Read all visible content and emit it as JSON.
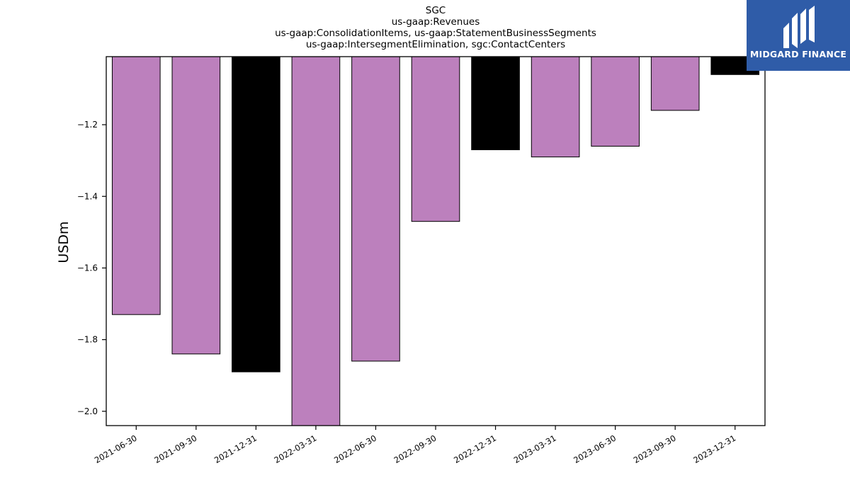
{
  "chart_data": {
    "type": "bar",
    "title_lines": [
      "SGC",
      "us-gaap:Revenues",
      "us-gaap:ConsolidationItems, us-gaap:StatementBusinessSegments",
      "us-gaap:IntersegmentElimination, sgc:ContactCenters"
    ],
    "ylabel": "USDm",
    "xlabel": "",
    "categories": [
      "2021-06-30",
      "2021-09-30",
      "2021-12-31",
      "2022-03-31",
      "2022-06-30",
      "2022-09-30",
      "2022-12-31",
      "2023-03-31",
      "2023-06-30",
      "2023-09-30",
      "2023-12-31"
    ],
    "values": [
      -1.73,
      -1.84,
      -1.89,
      -2.04,
      -1.86,
      -1.47,
      -1.27,
      -1.29,
      -1.26,
      -1.16,
      -1.06
    ],
    "bar_colors": [
      "#bc80bd",
      "#bc80bd",
      "#000000",
      "#bc80bd",
      "#bc80bd",
      "#bc80bd",
      "#000000",
      "#bc80bd",
      "#bc80bd",
      "#bc80bd",
      "#000000"
    ],
    "ylim": [
      -2.04,
      -1.01
    ],
    "yticks": [
      -1.2,
      -1.4,
      -1.6,
      -1.8,
      -2.0
    ],
    "ytick_labels": [
      "−1.2",
      "−1.4",
      "−1.6",
      "−1.8",
      "−2.0"
    ],
    "grid": false,
    "legend": "none"
  },
  "logo": {
    "text": "MIDGARD FINANCE",
    "color": "#2f5ca8"
  }
}
